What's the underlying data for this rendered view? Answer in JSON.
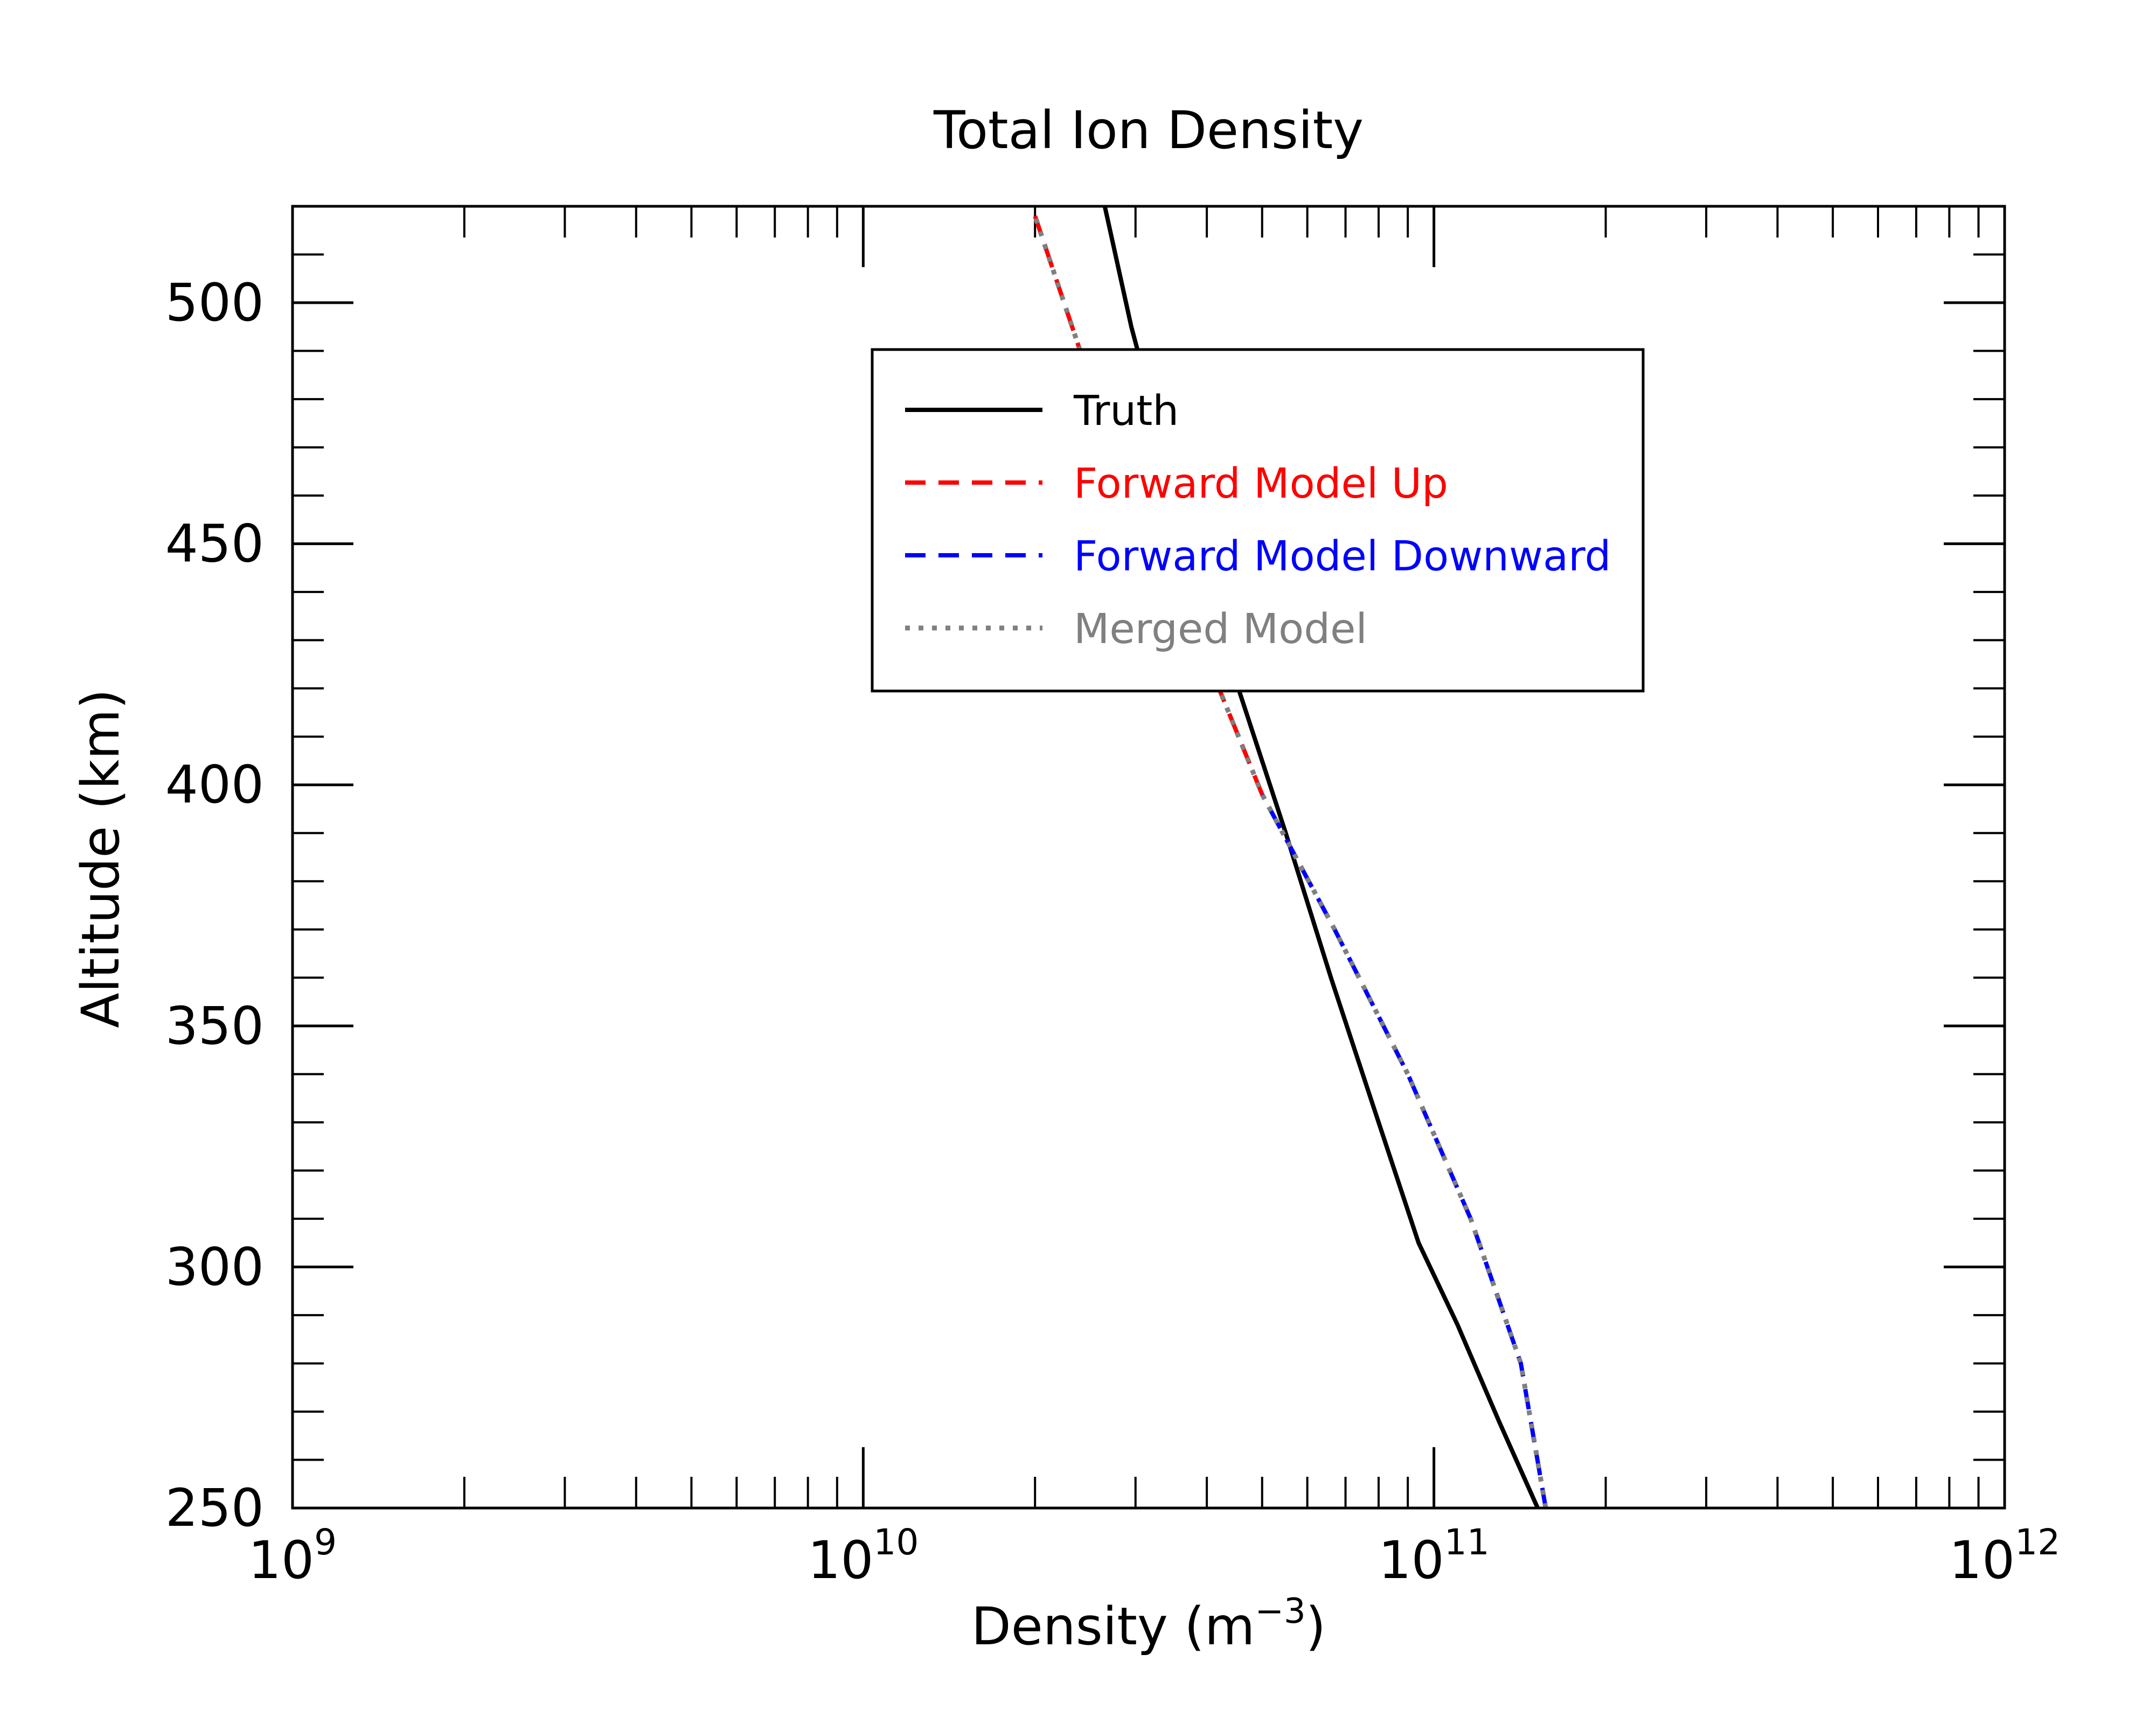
{
  "colors": {
    "truth": "#000000",
    "forward_up": "#ff0000",
    "forward_down": "#0000ff",
    "merged": "#808080"
  },
  "chart_data": {
    "type": "line",
    "title": "Total Ion Density",
    "xlabel": {
      "text": "Density (m",
      "sup": "−3",
      "close": ")"
    },
    "ylabel": "Altitude (km)",
    "xscale": "log",
    "xlim": [
      1000000000.0,
      1000000000000.0
    ],
    "ylim": [
      250,
      520
    ],
    "x_ticks": [
      {
        "value": 1000000000.0,
        "base": "10",
        "exp": "9"
      },
      {
        "value": 10000000000.0,
        "base": "10",
        "exp": "10"
      },
      {
        "value": 100000000000.0,
        "base": "10",
        "exp": "11"
      },
      {
        "value": 1000000000000.0,
        "base": "10",
        "exp": "12"
      }
    ],
    "y_ticks": [
      {
        "value": 250,
        "label": "250"
      },
      {
        "value": 300,
        "label": "300"
      },
      {
        "value": 350,
        "label": "350"
      },
      {
        "value": 400,
        "label": "400"
      },
      {
        "value": 450,
        "label": "450"
      },
      {
        "value": 500,
        "label": "500"
      }
    ],
    "grid": false,
    "legend_position": "upper-center",
    "series": [
      {
        "name": "Truth",
        "color_key": "truth",
        "style": "solid",
        "points": [
          {
            "x": 152000000000.0,
            "y": 250
          },
          {
            "x": 130000000000.0,
            "y": 268
          },
          {
            "x": 110000000000.0,
            "y": 288
          },
          {
            "x": 94000000000.0,
            "y": 305
          },
          {
            "x": 80000000000.0,
            "y": 330
          },
          {
            "x": 66000000000.0,
            "y": 360
          },
          {
            "x": 55000000000.0,
            "y": 390
          },
          {
            "x": 44000000000.0,
            "y": 425
          },
          {
            "x": 35000000000.0,
            "y": 462
          },
          {
            "x": 29500000000.0,
            "y": 495
          },
          {
            "x": 26500000000.0,
            "y": 520
          }
        ]
      },
      {
        "name": "Forward Model Up",
        "color_key": "forward_up",
        "style": "dashed",
        "points": [
          {
            "x": 50000000000.0,
            "y": 398
          },
          {
            "x": 42000000000.0,
            "y": 420
          },
          {
            "x": 33000000000.0,
            "y": 450
          },
          {
            "x": 24000000000.0,
            "y": 490
          },
          {
            "x": 20000000000.0,
            "y": 518
          }
        ]
      },
      {
        "name": "Forward Model Downward",
        "color_key": "forward_down",
        "style": "dashed",
        "points": [
          {
            "x": 157000000000.0,
            "y": 250
          },
          {
            "x": 142000000000.0,
            "y": 280
          },
          {
            "x": 116000000000.0,
            "y": 310
          },
          {
            "x": 90000000000.0,
            "y": 340
          },
          {
            "x": 67000000000.0,
            "y": 370
          },
          {
            "x": 50000000000.0,
            "y": 398
          }
        ]
      },
      {
        "name": "Merged Model",
        "color_key": "merged",
        "style": "dotted",
        "points": [
          {
            "x": 157000000000.0,
            "y": 250
          },
          {
            "x": 142000000000.0,
            "y": 280
          },
          {
            "x": 116000000000.0,
            "y": 310
          },
          {
            "x": 90000000000.0,
            "y": 340
          },
          {
            "x": 67000000000.0,
            "y": 370
          },
          {
            "x": 50000000000.0,
            "y": 398
          },
          {
            "x": 42000000000.0,
            "y": 420
          },
          {
            "x": 33000000000.0,
            "y": 450
          },
          {
            "x": 24000000000.0,
            "y": 490
          },
          {
            "x": 20000000000.0,
            "y": 518
          }
        ]
      }
    ]
  }
}
